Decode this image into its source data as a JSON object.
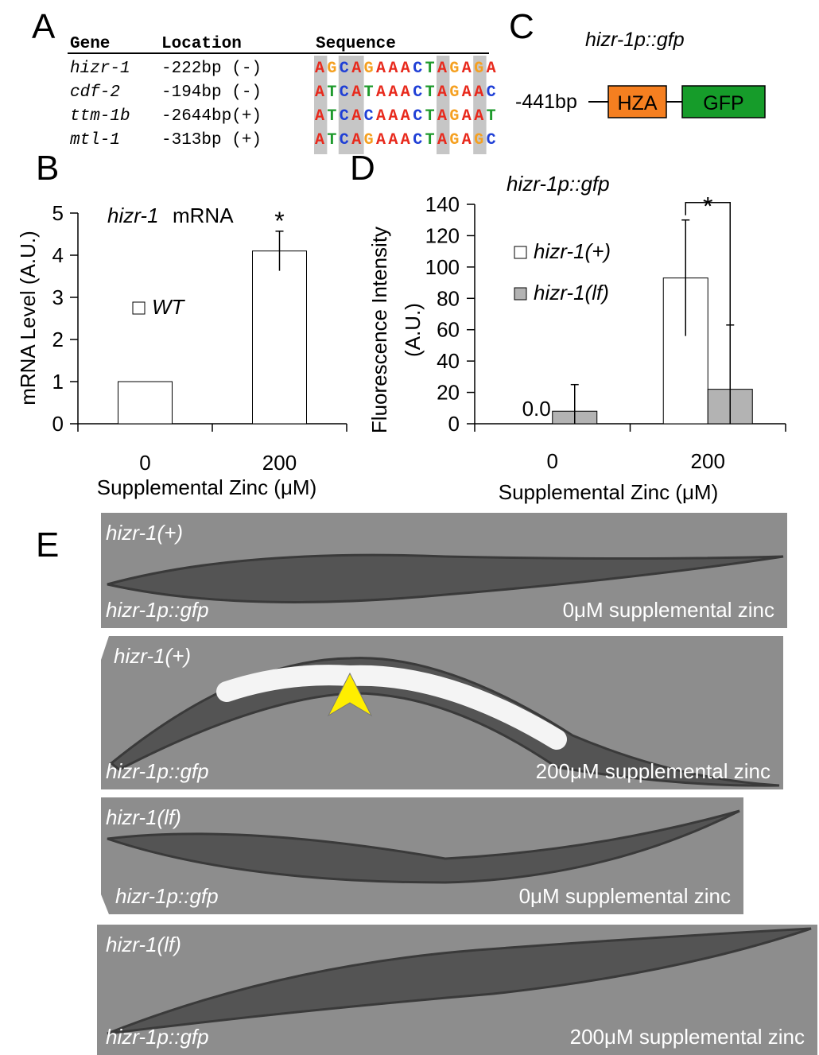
{
  "panel_a": {
    "letter": "A",
    "headers": [
      "Gene",
      "Location",
      "Sequence"
    ],
    "rows": [
      [
        "hizr-1",
        "-222bp (-)",
        "AGCAGAAACTAGAGA"
      ],
      [
        "cdf-2",
        "-194bp (-)",
        "ATCATAAACTAGAAC"
      ],
      [
        "ttm-1b",
        "-2644bp(+)",
        "ATCACAAACTAGAAT"
      ],
      [
        "mtl-1",
        "-313bp (+)",
        "ATCAGAAACTAGAGC"
      ]
    ],
    "base_colors": {
      "A": "#e8291c",
      "G": "#f5a020",
      "C": "#1f3fd6",
      "T": "#1e9a2c"
    },
    "highlight_columns": [
      0,
      2,
      3,
      10,
      13
    ]
  },
  "panel_c": {
    "letter": "C",
    "title": "hizr-1p::gfp",
    "position": "-441bp",
    "boxes": [
      {
        "label": "HZA",
        "color": "#f57f20"
      },
      {
        "label": "GFP",
        "color": "#169c2a"
      }
    ]
  },
  "chart_data": [
    {
      "panel_label": "B",
      "type": "bar",
      "title": [
        "hizr-1",
        "mRNA"
      ],
      "categories": [
        "0",
        "200"
      ],
      "series": [
        {
          "name": "WT",
          "color": "#ffffff",
          "values": [
            1,
            4.1
          ],
          "errors": [
            null,
            0.47
          ]
        }
      ],
      "ylim": [
        0,
        5
      ],
      "yticks": [
        0,
        1,
        2,
        3,
        4,
        5
      ],
      "xlabel": "Supplemental Zinc (μM)",
      "ylabel": [
        "mRNA Level (A.U.)"
      ],
      "annotations": [
        {
          "text": "*",
          "category": 1
        }
      ]
    },
    {
      "panel_label": "D",
      "type": "bar",
      "title": "hizr-1p::gfp",
      "categories": [
        "0",
        "200"
      ],
      "series": [
        {
          "name": "hizr-1(+)",
          "color": "#ffffff",
          "values": [
            0,
            93
          ],
          "value_labels": [
            "0.0",
            null
          ],
          "errors": [
            null,
            37
          ]
        },
        {
          "name": "hizr-1(lf)",
          "color": "#b3b3b3",
          "values": [
            8,
            22
          ],
          "errors": [
            17,
            41
          ]
        }
      ],
      "ylim": [
        0,
        140
      ],
      "yticks": [
        0,
        20,
        40,
        60,
        80,
        100,
        120,
        140
      ],
      "xlabel": "Supplemental Zinc (μM)",
      "ylabel": [
        "Fluorescence Intensity",
        "(A.U.)"
      ],
      "significance": [
        {
          "text": "*",
          "category": 1
        }
      ]
    }
  ],
  "panel_e": {
    "letter": "E",
    "images": [
      {
        "genotype": "hizr-1(+)",
        "reporter": "hizr-1p::gfp",
        "condition": "0μM supplemental zinc"
      },
      {
        "genotype": "hizr-1(+)",
        "reporter": "hizr-1p::gfp",
        "condition": "200μM supplemental zinc"
      },
      {
        "genotype": "hizr-1(lf)",
        "reporter": "hizr-1p::gfp",
        "condition": "0μM supplemental zinc"
      },
      {
        "genotype": "hizr-1(lf)",
        "reporter": "hizr-1p::gfp",
        "condition": "200μM supplemental zinc"
      }
    ]
  }
}
